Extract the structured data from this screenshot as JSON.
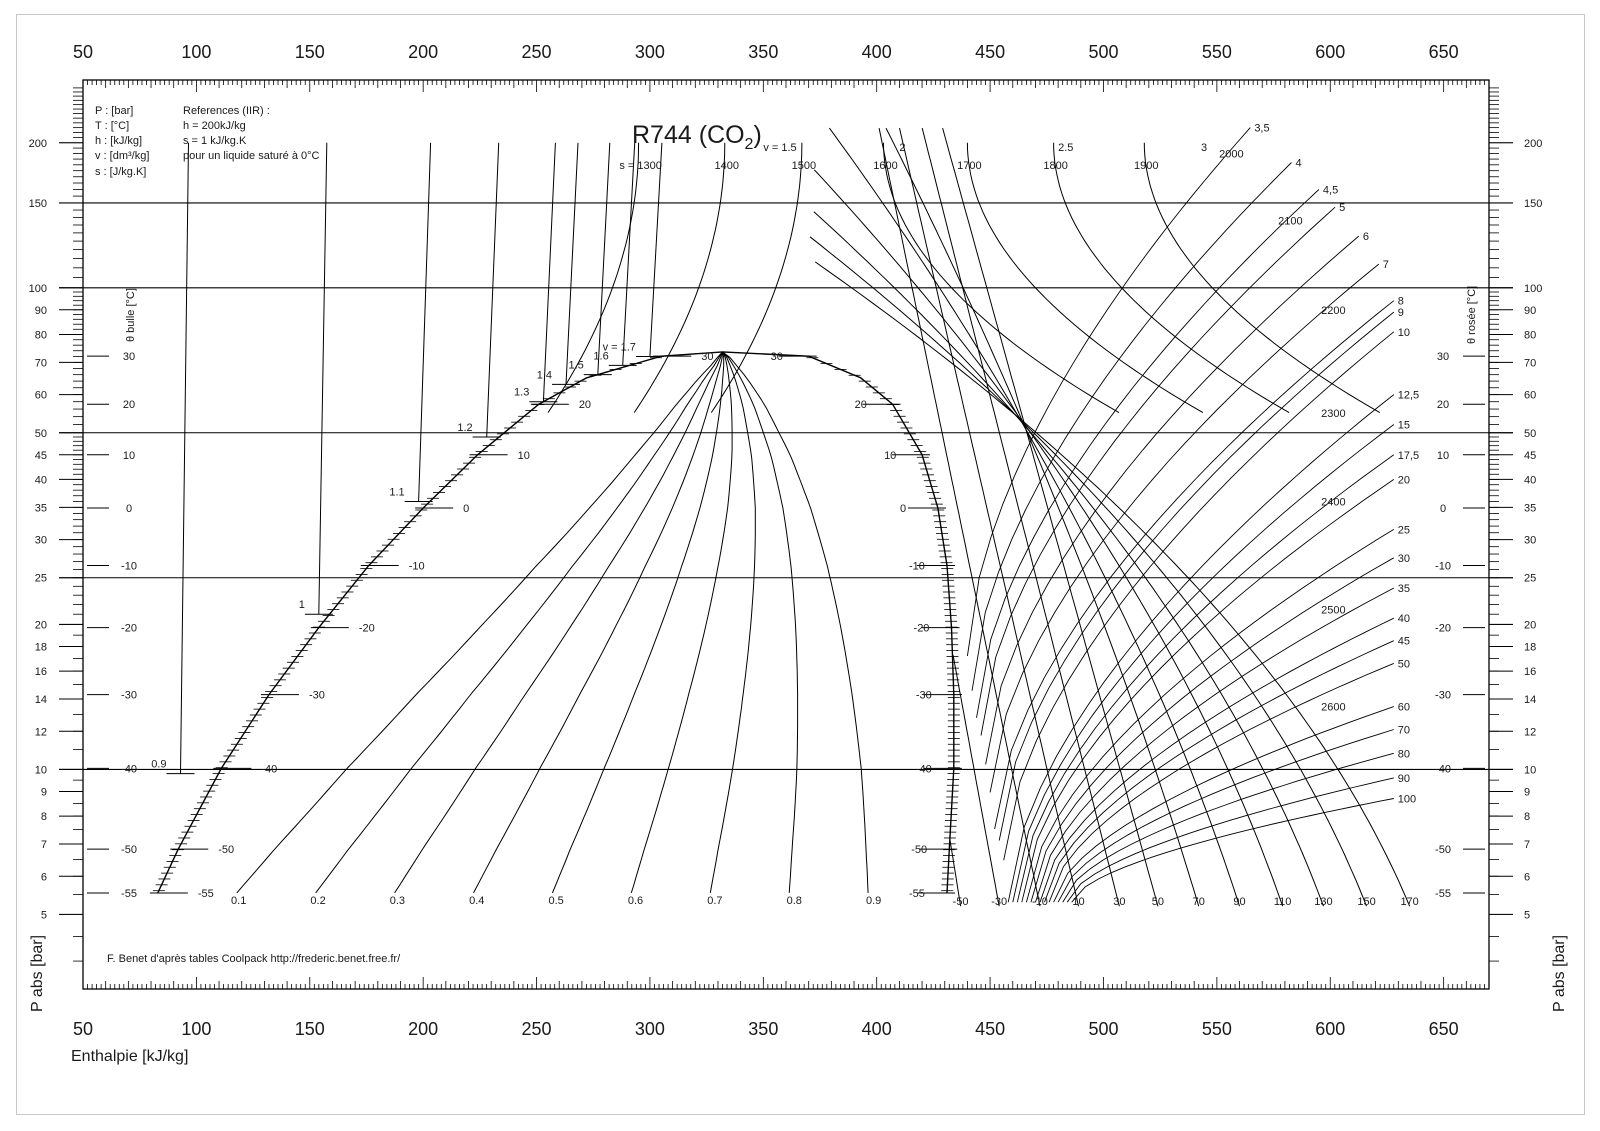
{
  "chart_data": {
    "type": "line",
    "title": "R744 (CO",
    "title_sub": "2",
    "title_close": ")",
    "xlabel": "Enthalpie [kJ/kg]",
    "ylabel": "P abs [bar]",
    "y_scale": "log",
    "xlim": [
      50,
      670
    ],
    "ylim": [
      3.5,
      270
    ],
    "x_ticks": [
      50,
      100,
      150,
      200,
      250,
      300,
      350,
      400,
      450,
      500,
      550,
      600,
      650
    ],
    "y_ticks": [
      5,
      6,
      7,
      8,
      9,
      10,
      12,
      14,
      16,
      18,
      20,
      25,
      30,
      35,
      40,
      45,
      50,
      60,
      70,
      80,
      90,
      100,
      150,
      200
    ],
    "grid_pressures": [
      10,
      25,
      50,
      100,
      150
    ],
    "side_label_left": "θ bulle [°C]",
    "side_label_right": "θ rosée [°C]",
    "units_legend": [
      "P : [bar]",
      "T : [°C]",
      "h : [kJ/kg]",
      "v : [dm³/kg]",
      "s : [J/kg.K]"
    ],
    "references": [
      "References (IIR) :",
      "h = 200kJ/kg",
      "s = 1 kJ/kg.K",
      "pour un liquide saturé à 0°C"
    ],
    "credit": "F. Benet d'après tables Coolpack http://frederic.benet.free.fr/",
    "saturation_temps": [
      {
        "t": "30",
        "p": 72.1
      },
      {
        "t": "20",
        "p": 57.3
      },
      {
        "t": "10",
        "p": 45.0
      },
      {
        "t": "0",
        "p": 34.9
      },
      {
        "t": "-10",
        "p": 26.5
      },
      {
        "t": "-20",
        "p": 19.7
      },
      {
        "t": "-30",
        "p": 14.3
      },
      {
        "t": "-40",
        "p": 10.05
      },
      {
        "t": "-50",
        "p": 6.83
      },
      {
        "t": "-55",
        "p": 5.54
      }
    ],
    "bubble_line": [
      {
        "p": 5.54,
        "h": 83
      },
      {
        "p": 6.83,
        "h": 92
      },
      {
        "p": 10.05,
        "h": 111
      },
      {
        "p": 14.3,
        "h": 132
      },
      {
        "p": 19.7,
        "h": 154
      },
      {
        "p": 26.5,
        "h": 176
      },
      {
        "p": 34.9,
        "h": 200
      },
      {
        "p": 45.0,
        "h": 224
      },
      {
        "p": 57.3,
        "h": 251
      },
      {
        "p": 65.0,
        "h": 272
      },
      {
        "p": 72.1,
        "h": 305
      },
      {
        "p": 73.6,
        "h": 332
      }
    ],
    "dew_line": [
      {
        "p": 73.6,
        "h": 332
      },
      {
        "p": 72.1,
        "h": 370
      },
      {
        "p": 65.0,
        "h": 393
      },
      {
        "p": 57.3,
        "h": 407
      },
      {
        "p": 45.0,
        "h": 420
      },
      {
        "p": 34.9,
        "h": 427
      },
      {
        "p": 26.5,
        "h": 431
      },
      {
        "p": 19.7,
        "h": 433
      },
      {
        "p": 14.3,
        "h": 434
      },
      {
        "p": 10.05,
        "h": 434
      },
      {
        "p": 6.83,
        "h": 432
      },
      {
        "p": 5.54,
        "h": 431
      }
    ],
    "quality_labels": [
      {
        "label": "0.1",
        "h": 116
      },
      {
        "label": "0.2",
        "h": 151
      },
      {
        "label": "0.3",
        "h": 186
      },
      {
        "label": "0.4",
        "h": 221
      },
      {
        "label": "0.5",
        "h": 256
      },
      {
        "label": "0.6",
        "h": 291
      },
      {
        "label": "0.7",
        "h": 326
      },
      {
        "label": "0.8",
        "h": 361
      },
      {
        "label": "0.9",
        "h": 396
      }
    ],
    "isotherm_bottom_labels": [
      "-50",
      "-30",
      "-10",
      "10",
      "30",
      "50",
      "70",
      "90",
      "110",
      "130",
      "150",
      "170"
    ],
    "isotherm_bottom_h": [
      437,
      454,
      472,
      489,
      507,
      524,
      542,
      560,
      579,
      597,
      616,
      635
    ],
    "liquid_specific_volume": [
      {
        "label": "0.9",
        "h": 93,
        "p": 9.8
      },
      {
        "label": "1",
        "h": 154,
        "p": 21
      },
      {
        "label": "1.1",
        "h": 198,
        "p": 36
      },
      {
        "label": "1.2",
        "h": 228,
        "p": 49
      },
      {
        "label": "1.3",
        "h": 253,
        "p": 58
      },
      {
        "label": "1.4",
        "h": 263,
        "p": 63
      },
      {
        "label": "1.5",
        "h": 277,
        "p": 66
      },
      {
        "label": "1.6",
        "h": 288,
        "p": 69
      },
      {
        "label": "v = 1.7",
        "h": 300,
        "p": 72
      }
    ],
    "entropy_top_labels": [
      {
        "label": "s = 1300",
        "h": 295
      },
      {
        "label": "1400",
        "h": 333
      },
      {
        "label": "1500",
        "h": 367
      },
      {
        "label": "1600",
        "h": 403
      },
      {
        "label": "1700",
        "h": 440
      },
      {
        "label": "1800",
        "h": 478
      },
      {
        "label": "1900",
        "h": 518
      }
    ],
    "entropy_right_labels": [
      {
        "label": "2000",
        "p": 190
      },
      {
        "label": "2100",
        "p": 138
      },
      {
        "label": "2200",
        "p": 90
      },
      {
        "label": "2300",
        "p": 55
      },
      {
        "label": "2400",
        "p": 36
      },
      {
        "label": "2500",
        "p": 21.5
      },
      {
        "label": "2600",
        "p": 13.5
      }
    ],
    "volume_labels": [
      {
        "label": "v = 1.5",
        "h": 350,
        "p": 200
      },
      {
        "label": "2",
        "h": 410,
        "p": 200
      },
      {
        "label": "2.5",
        "h": 480,
        "p": 200
      },
      {
        "label": "3",
        "h": 543,
        "p": 200
      },
      {
        "label": "3,5",
        "p": 215
      },
      {
        "label": "4",
        "p": 182
      },
      {
        "label": "4,5",
        "p": 160
      },
      {
        "label": "5",
        "p": 147
      },
      {
        "label": "6",
        "p": 128
      },
      {
        "label": "7",
        "p": 112
      },
      {
        "label": "8",
        "p": 94
      },
      {
        "label": "9",
        "p": 89
      },
      {
        "label": "10",
        "p": 81
      },
      {
        "label": "12,5",
        "p": 60
      },
      {
        "label": "15",
        "p": 52
      },
      {
        "label": "17,5",
        "p": 45
      },
      {
        "label": "20",
        "p": 40
      },
      {
        "label": "25",
        "p": 31.5
      },
      {
        "label": "30",
        "p": 27.5
      },
      {
        "label": "35",
        "p": 23.8
      },
      {
        "label": "40",
        "p": 20.6
      },
      {
        "label": "45",
        "p": 18.5
      },
      {
        "label": "50",
        "p": 16.6
      },
      {
        "label": "60",
        "p": 13.5
      },
      {
        "label": "70",
        "p": 12.1
      },
      {
        "label": "80",
        "p": 10.8
      },
      {
        "label": "90",
        "p": 9.6
      },
      {
        "label": "100",
        "p": 8.7
      }
    ]
  }
}
